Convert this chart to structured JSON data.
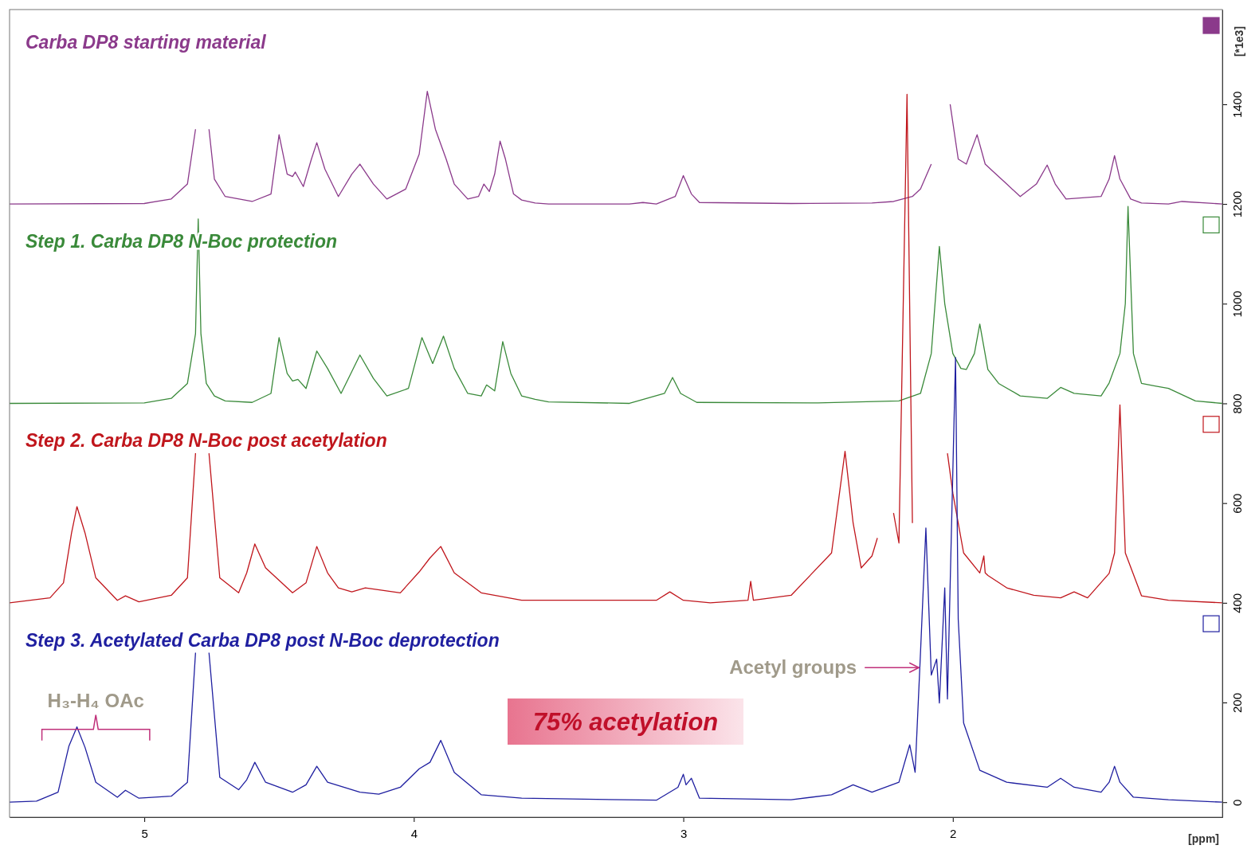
{
  "chart_data": {
    "type": "line",
    "xlabel": "[ppm]",
    "ylabel": "[*1e3]",
    "xlim": [
      5.5,
      1.0
    ],
    "xticks": [
      5,
      4,
      3,
      2
    ],
    "ylim": [
      -30,
      1590
    ],
    "yticks": [
      0,
      200,
      400,
      600,
      800,
      1000,
      1200,
      1400
    ],
    "grid": false,
    "legend": false,
    "marker": "none",
    "line_style": "solid",
    "series": [
      {
        "name": "Carba DP8  starting material",
        "color": "#8b3a8b",
        "x": [
          5.5,
          5.0,
          4.9,
          4.84,
          4.81,
          4.8,
          4.79,
          4.78,
          4.76,
          4.74,
          4.7,
          4.6,
          4.53,
          4.5,
          4.47,
          4.45,
          4.44,
          4.41,
          4.38,
          4.36,
          4.33,
          4.28,
          4.23,
          4.2,
          4.15,
          4.1,
          4.03,
          3.98,
          3.95,
          3.92,
          3.88,
          3.85,
          3.8,
          3.76,
          3.74,
          3.72,
          3.7,
          3.68,
          3.66,
          3.63,
          3.6,
          3.55,
          3.5,
          3.2,
          3.15,
          3.1,
          3.03,
          3.0,
          2.97,
          2.94,
          2.6,
          2.3,
          2.22,
          2.15,
          2.12,
          2.08,
          2.06,
          2.03,
          2.01,
          1.98,
          1.95,
          1.91,
          1.88,
          1.85,
          1.8,
          1.75,
          1.69,
          1.65,
          1.62,
          1.58,
          1.45,
          1.42,
          1.4,
          1.38,
          1.34,
          1.3,
          1.2,
          1.15,
          1.0
        ],
        "values": [
          1200,
          1201,
          1210,
          1240,
          1350,
          null,
          null,
          null,
          1350,
          1250,
          1215,
          1205,
          1220,
          1339,
          1260,
          1255,
          1264,
          1235,
          1290,
          1323,
          1270,
          1215,
          1260,
          1280,
          1240,
          1210,
          1230,
          1300,
          1426,
          1350,
          1290,
          1240,
          1210,
          1215,
          1240,
          1225,
          1260,
          1326,
          1290,
          1220,
          1208,
          1202,
          1200,
          1200,
          1203,
          1200,
          1215,
          1257,
          1220,
          1203,
          1201,
          1202,
          1205,
          1215,
          1230,
          1280,
          null,
          null,
          1400,
          1290,
          1280,
          1339,
          1280,
          1265,
          1240,
          1215,
          1240,
          1278,
          1240,
          1210,
          1215,
          1250,
          1297,
          1250,
          1210,
          1202,
          1200,
          1205,
          1200
        ]
      },
      {
        "name": "Step 1. Carba DP8 N-Boc protection",
        "color": "#3a8a3a",
        "x": [
          5.5,
          5.0,
          4.9,
          4.84,
          4.81,
          4.8,
          4.79,
          4.77,
          4.74,
          4.7,
          4.6,
          4.53,
          4.5,
          4.47,
          4.45,
          4.43,
          4.4,
          4.36,
          4.32,
          4.27,
          4.2,
          4.15,
          4.1,
          4.02,
          3.97,
          3.93,
          3.89,
          3.85,
          3.8,
          3.75,
          3.73,
          3.7,
          3.67,
          3.64,
          3.6,
          3.55,
          3.5,
          3.2,
          3.07,
          3.04,
          3.01,
          2.95,
          2.5,
          2.2,
          2.12,
          2.08,
          2.05,
          2.03,
          2.0,
          1.97,
          1.95,
          1.92,
          1.9,
          1.87,
          1.83,
          1.75,
          1.65,
          1.6,
          1.55,
          1.45,
          1.42,
          1.38,
          1.36,
          1.35,
          1.33,
          1.3,
          1.25,
          1.2,
          1.1,
          1.0
        ],
        "values": [
          800,
          801,
          810,
          840,
          940,
          1170,
          940,
          840,
          815,
          805,
          802,
          820,
          932,
          860,
          845,
          848,
          830,
          905,
          870,
          820,
          897,
          850,
          815,
          830,
          932,
          880,
          935,
          870,
          820,
          815,
          837,
          825,
          924,
          860,
          815,
          808,
          803,
          800,
          820,
          852,
          820,
          802,
          801,
          805,
          820,
          900,
          1115,
          1000,
          900,
          870,
          868,
          900,
          959,
          868,
          840,
          815,
          810,
          832,
          820,
          815,
          841,
          900,
          1000,
          1195,
          900,
          840,
          835,
          830,
          805,
          800
        ]
      },
      {
        "name": "Step 2. Carba DP8 N-Boc post acetylation",
        "color": "#c0161c",
        "x": [
          5.5,
          5.35,
          5.3,
          5.27,
          5.25,
          5.22,
          5.18,
          5.1,
          5.07,
          5.02,
          4.9,
          4.84,
          4.81,
          4.8,
          4.79,
          4.78,
          4.76,
          4.72,
          4.65,
          4.62,
          4.59,
          4.55,
          4.45,
          4.4,
          4.36,
          4.32,
          4.28,
          4.23,
          4.18,
          4.05,
          3.98,
          3.94,
          3.9,
          3.85,
          3.75,
          3.6,
          3.1,
          3.05,
          3.0,
          2.9,
          2.76,
          2.75,
          2.74,
          2.6,
          2.45,
          2.4,
          2.37,
          2.34,
          2.3,
          2.28,
          2.25,
          2.22,
          2.2,
          2.17,
          2.15,
          2.12,
          2.1,
          2.07,
          2.04,
          2.02,
          2.0,
          1.96,
          1.9,
          1.885,
          1.88,
          1.87,
          1.8,
          1.7,
          1.6,
          1.55,
          1.5,
          1.42,
          1.4,
          1.38,
          1.36,
          1.3,
          1.2,
          1.0
        ],
        "values": [
          400,
          410,
          440,
          540,
          593,
          540,
          450,
          405,
          414,
          402,
          415,
          450,
          700,
          null,
          null,
          null,
          700,
          450,
          420,
          460,
          518,
          470,
          420,
          440,
          513,
          460,
          430,
          422,
          430,
          420,
          462,
          490,
          513,
          460,
          420,
          405,
          405,
          422,
          405,
          400,
          405,
          443,
          405,
          415,
          500,
          704,
          560,
          470,
          494,
          530,
          null,
          580,
          520,
          1420,
          560,
          null,
          null,
          null,
          null,
          700,
          620,
          500,
          460,
          494,
          460,
          455,
          430,
          415,
          410,
          422,
          410,
          459,
          500,
          797,
          500,
          414,
          405,
          400
        ]
      },
      {
        "name": "Step 3. Acetylated  Carba DP8 post N-Boc deprotection",
        "color": "#1f1fa0",
        "x": [
          5.5,
          5.4,
          5.32,
          5.28,
          5.25,
          5.22,
          5.18,
          5.1,
          5.07,
          5.02,
          4.9,
          4.84,
          4.81,
          4.8,
          4.79,
          4.78,
          4.76,
          4.72,
          4.65,
          4.62,
          4.59,
          4.55,
          4.45,
          4.4,
          4.36,
          4.32,
          4.2,
          4.13,
          4.05,
          3.98,
          3.94,
          3.9,
          3.85,
          3.75,
          3.6,
          3.1,
          3.02,
          3.0,
          2.99,
          2.97,
          2.94,
          2.6,
          2.45,
          2.37,
          2.3,
          2.2,
          2.16,
          2.14,
          2.12,
          2.1,
          2.08,
          2.06,
          2.05,
          2.03,
          2.02,
          1.99,
          1.98,
          1.96,
          1.9,
          1.8,
          1.65,
          1.6,
          1.55,
          1.45,
          1.42,
          1.4,
          1.38,
          1.33,
          1.2,
          1.0
        ],
        "values": [
          0,
          2,
          20,
          112,
          151,
          110,
          40,
          10,
          24,
          8,
          12,
          40,
          300,
          null,
          null,
          null,
          300,
          50,
          25,
          45,
          80,
          40,
          20,
          35,
          72,
          40,
          20,
          16,
          30,
          67,
          80,
          124,
          60,
          15,
          8,
          4,
          30,
          56,
          35,
          48,
          8,
          5,
          15,
          35,
          20,
          40,
          115,
          60,
          300,
          550,
          255,
          287,
          199,
          430,
          207,
          892,
          367,
          159,
          64,
          40,
          30,
          48,
          30,
          20,
          40,
          72,
          40,
          10,
          5,
          0
        ]
      }
    ],
    "annotations": [
      "H₃-H₄ OAc",
      {
        "text": "Acetyl groups",
        "x": 2.12,
        "y": 270
      },
      "75% acetylation"
    ]
  }
}
